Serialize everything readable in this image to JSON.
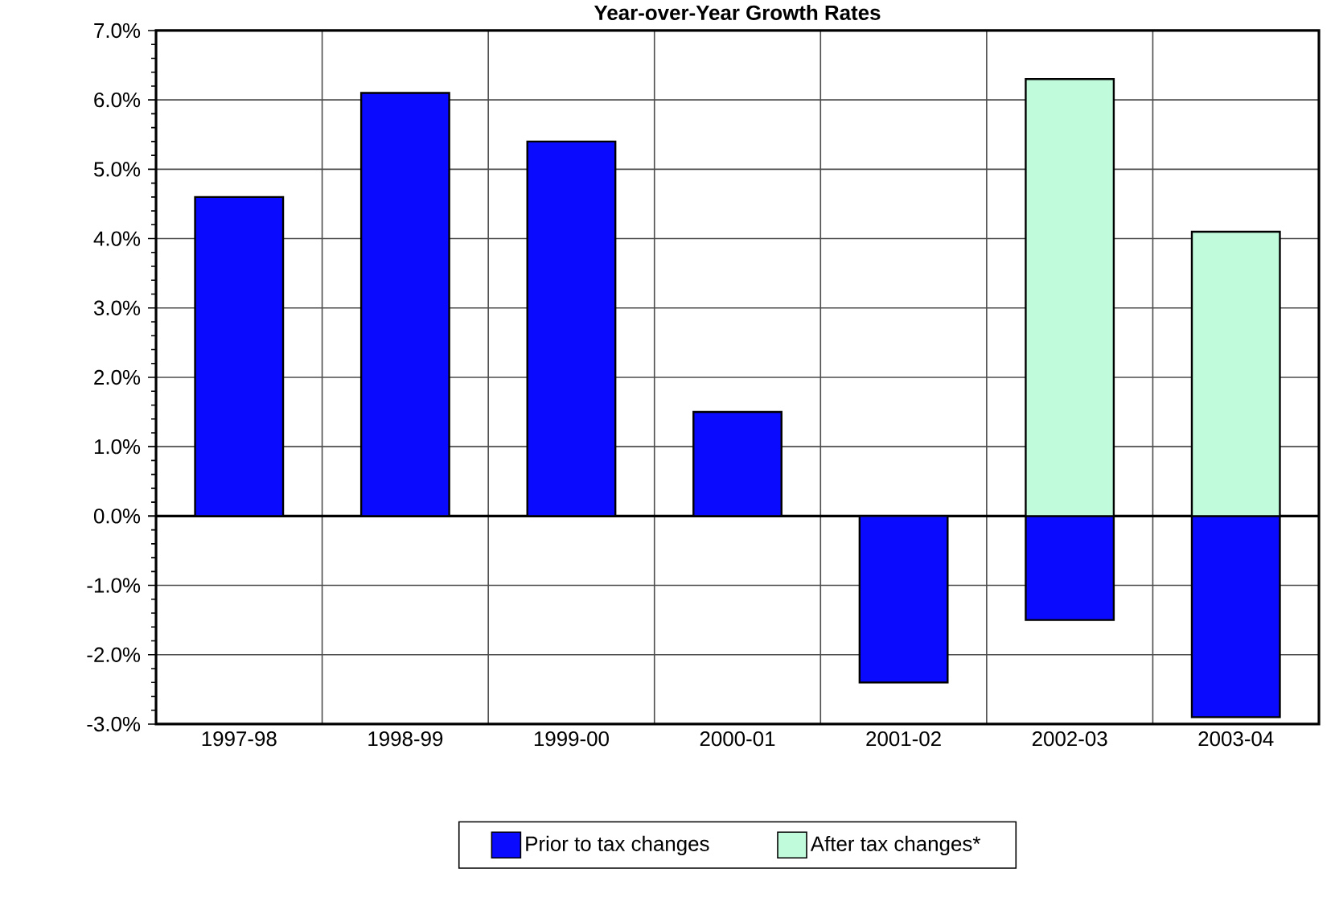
{
  "chart_data": {
    "type": "bar",
    "title": "Year-over-Year Growth Rates",
    "categories": [
      "1997-98",
      "1998-99",
      "1999-00",
      "2000-01",
      "2001-02",
      "2002-03",
      "2003-04"
    ],
    "series": [
      {
        "name": "Prior to tax changes",
        "color": "#0a0aff",
        "values": [
          4.6,
          6.1,
          5.4,
          1.5,
          -2.4,
          -1.5,
          -2.9
        ]
      },
      {
        "name": "After tax changes*",
        "color": "#c0fcdc",
        "values": [
          null,
          null,
          null,
          null,
          null,
          6.3,
          4.1
        ]
      }
    ],
    "ylim": [
      -3,
      7
    ],
    "yticks": [
      {
        "value": -3,
        "label": "-3.0%"
      },
      {
        "value": -2,
        "label": "-2.0%"
      },
      {
        "value": -1,
        "label": "-1.0%"
      },
      {
        "value": 0,
        "label": "0.0%"
      },
      {
        "value": 1,
        "label": "1.0%"
      },
      {
        "value": 2,
        "label": "2.0%"
      },
      {
        "value": 3,
        "label": "3.0%"
      },
      {
        "value": 4,
        "label": "4.0%"
      },
      {
        "value": 5,
        "label": "5.0%"
      },
      {
        "value": 6,
        "label": "6.0%"
      },
      {
        "value": 7,
        "label": "7.0%"
      }
    ],
    "grid": true,
    "legend": "bottom"
  }
}
